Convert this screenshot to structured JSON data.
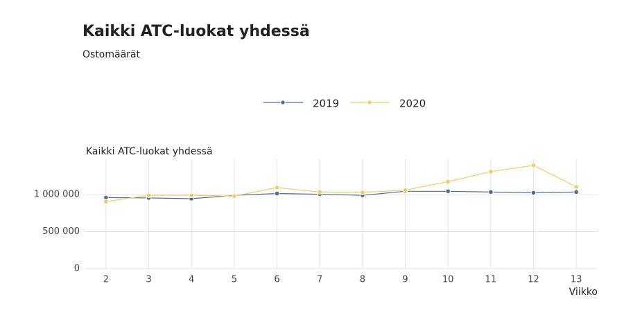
{
  "chart_data": {
    "type": "line",
    "title": "Kaikki ATC-luokat yhdessä",
    "subtitle": "Ostomäärät",
    "panel_title": "Kaikki ATC-luokat yhdessä",
    "x_label": "Viikko",
    "x": [
      2,
      3,
      4,
      5,
      6,
      7,
      8,
      9,
      10,
      11,
      12,
      13
    ],
    "xlim": [
      1.5,
      13.5
    ],
    "xticks": [
      2,
      3,
      4,
      5,
      6,
      7,
      8,
      9,
      10,
      11,
      12,
      13
    ],
    "ylim": [
      0,
      1450000
    ],
    "yticks": [
      0,
      {
        "value": 500000,
        "label": "500 000"
      },
      {
        "value": 1000000,
        "label": "1 000 000"
      }
    ],
    "grid": true,
    "legend": "top",
    "series": [
      {
        "name": "2019",
        "color": "#4a6c94",
        "values": [
          960000,
          955000,
          945000,
          990000,
          1015000,
          1005000,
          990000,
          1045000,
          1045000,
          1035000,
          1025000,
          1035000
        ]
      },
      {
        "name": "2020",
        "color": "#f5cc5c",
        "values": [
          905000,
          990000,
          990000,
          980000,
          1095000,
          1035000,
          1030000,
          1060000,
          1175000,
          1310000,
          1395000,
          1105000
        ]
      }
    ]
  }
}
